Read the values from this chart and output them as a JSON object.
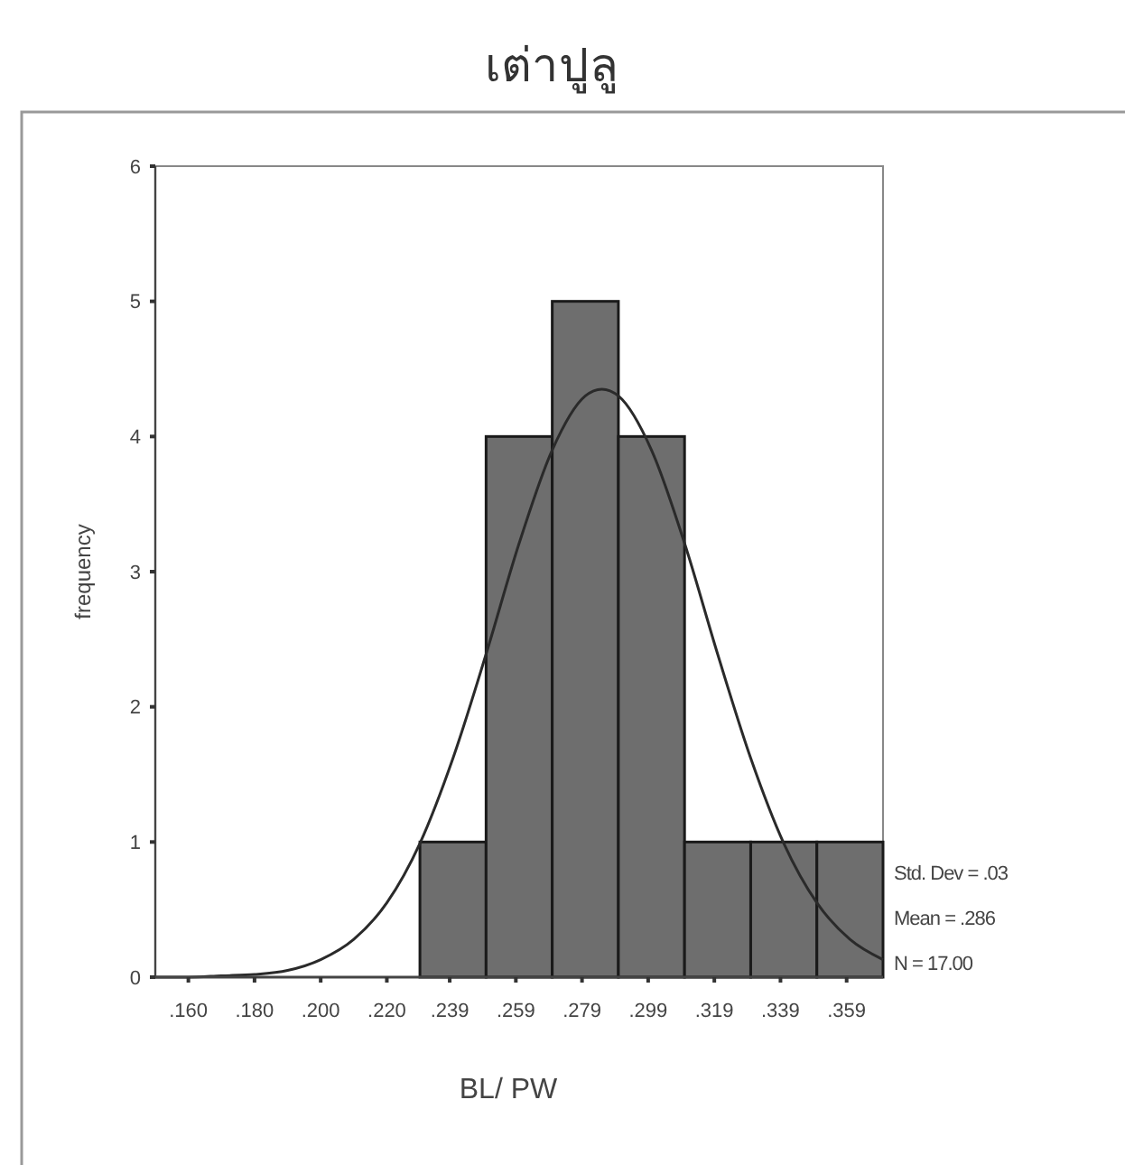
{
  "chart_data": {
    "type": "histogram",
    "title": "เต่าปูลู",
    "xlabel": "BL/ PW",
    "ylabel": "frequency",
    "bins": [
      0.23,
      0.25,
      0.27,
      0.29,
      0.31,
      0.33,
      0.35,
      0.37
    ],
    "series": [
      {
        "color": "#6e6e6e",
        "values": [
          1,
          4,
          5,
          4,
          1,
          1,
          1
        ]
      },
      {
        "type": "line",
        "color": "#2a2a2a",
        "x": [
          0.15,
          0.16,
          0.17,
          0.18,
          0.19,
          0.2,
          0.21,
          0.22,
          0.23,
          0.24,
          0.25,
          0.26,
          0.27,
          0.28,
          0.285,
          0.29,
          0.3,
          0.31,
          0.32,
          0.33,
          0.34,
          0.35,
          0.36,
          0.37
        ],
        "values": [
          0,
          0,
          0.01,
          0.02,
          0.05,
          0.13,
          0.28,
          0.55,
          0.99,
          1.62,
          2.39,
          3.21,
          3.9,
          4.3,
          4.35,
          4.3,
          3.9,
          3.21,
          2.39,
          1.62,
          0.99,
          0.55,
          0.28,
          0.13
        ]
      }
    ],
    "xlim": [
      0.15,
      0.37
    ],
    "xticks": [
      {
        "value": 0.16,
        "label": ".160"
      },
      {
        "value": 0.18,
        "label": ".180"
      },
      {
        "value": 0.2,
        "label": ".200"
      },
      {
        "value": 0.22,
        "label": ".220"
      },
      {
        "value": 0.239,
        "label": ".239"
      },
      {
        "value": 0.259,
        "label": ".259"
      },
      {
        "value": 0.279,
        "label": ".279"
      },
      {
        "value": 0.299,
        "label": ".299"
      },
      {
        "value": 0.319,
        "label": ".319"
      },
      {
        "value": 0.339,
        "label": ".339"
      },
      {
        "value": 0.359,
        "label": ".359"
      }
    ],
    "ylim": [
      0,
      6
    ],
    "yticks": [
      0,
      1,
      2,
      3,
      4,
      5,
      6
    ],
    "grid": false,
    "annotations": [
      "Std. Dev = .03",
      "Mean = .286",
      "N = 17.00"
    ]
  }
}
